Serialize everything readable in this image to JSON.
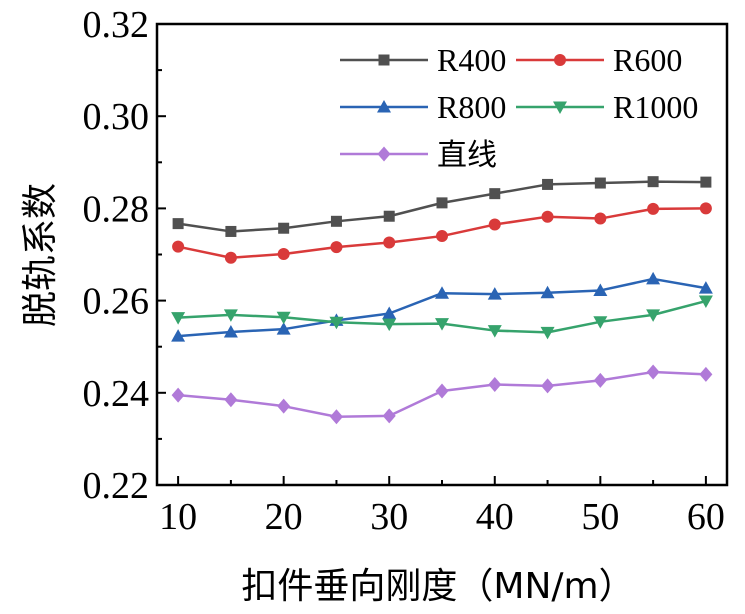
{
  "chart_data": {
    "type": "line",
    "title": "",
    "xlabel": "扣件垂向刚度（MN/m）",
    "ylabel": "脱轨系数",
    "x": [
      10,
      15,
      20,
      25,
      30,
      35,
      40,
      45,
      50,
      55,
      60
    ],
    "xlim": [
      8,
      62
    ],
    "ylim": [
      0.22,
      0.32
    ],
    "xticks": [
      10,
      20,
      30,
      40,
      50,
      60
    ],
    "xtick_labels": [
      "10",
      "20",
      "30",
      "40",
      "50",
      "60"
    ],
    "yticks": [
      0.22,
      0.24,
      0.26,
      0.28,
      0.3,
      0.32
    ],
    "ytick_labels": [
      "0.22",
      "0.24",
      "0.26",
      "0.28",
      "0.30",
      "0.32"
    ],
    "legend_position": "top-right",
    "series": [
      {
        "name": "R400",
        "color": "#505050",
        "marker": "square",
        "values": [
          0.2767,
          0.275,
          0.2757,
          0.2772,
          0.2783,
          0.2812,
          0.2832,
          0.2852,
          0.2855,
          0.2858,
          0.2857
        ]
      },
      {
        "name": "R600",
        "color": "#d93a3a",
        "marker": "circle",
        "values": [
          0.2717,
          0.2693,
          0.2701,
          0.2716,
          0.2726,
          0.274,
          0.2765,
          0.2782,
          0.2778,
          0.2799,
          0.28
        ]
      },
      {
        "name": "R800",
        "color": "#2a64b4",
        "marker": "triangle-up",
        "values": [
          0.2523,
          0.2532,
          0.2538,
          0.2557,
          0.2572,
          0.2616,
          0.2614,
          0.2617,
          0.2622,
          0.2647,
          0.2627
        ]
      },
      {
        "name": "R1000",
        "color": "#36a36c",
        "marker": "triangle-down",
        "values": [
          0.2563,
          0.2569,
          0.2564,
          0.2553,
          0.2549,
          0.255,
          0.2535,
          0.2531,
          0.2554,
          0.2569,
          0.2599
        ]
      },
      {
        "name": "直线",
        "color": "#b07ad8",
        "marker": "diamond",
        "values": [
          0.2395,
          0.2385,
          0.2371,
          0.2348,
          0.235,
          0.2404,
          0.2418,
          0.2415,
          0.2427,
          0.2445,
          0.244
        ]
      }
    ]
  }
}
